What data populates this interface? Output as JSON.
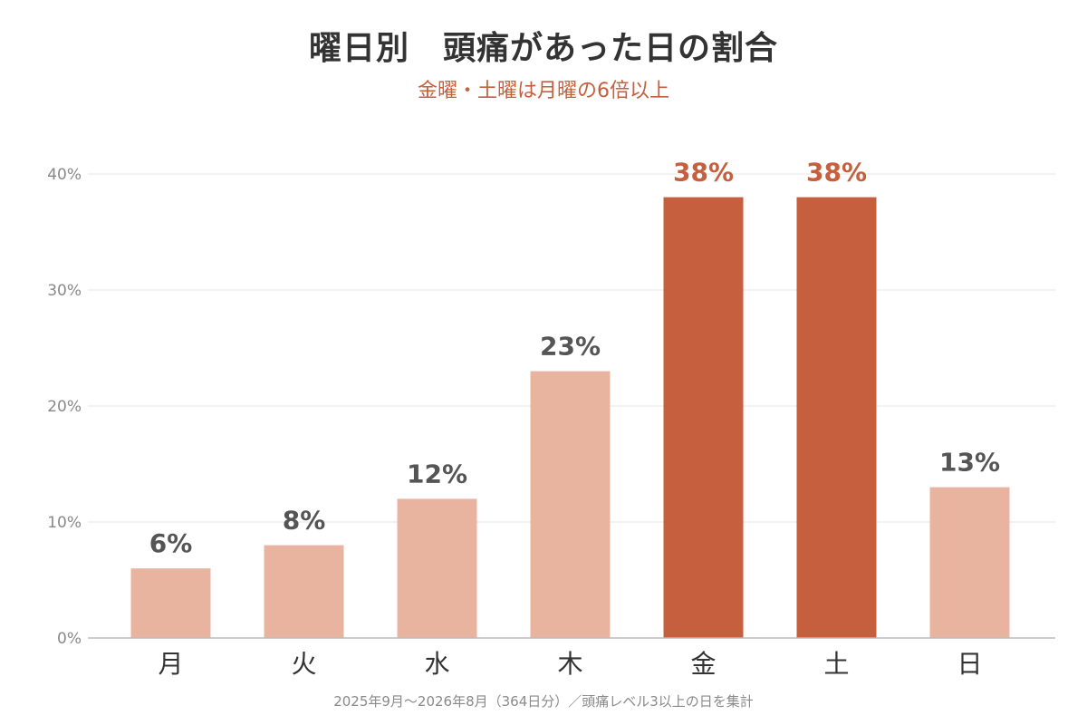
{
  "title": "曜日別　頭痛があった日の割合",
  "subtitle": "金曜・土曜は月曜の6倍以上",
  "footnote": "2025年9月〜2026年8月（364日分）／頭痛レベル3以上の日を集計",
  "colors": {
    "highlight": "#c55f3e",
    "normal": "#e8b4a0",
    "label_normal": "#555555",
    "grid": "#e6e6e6",
    "axis": "#bbbbbb",
    "tick": "#888888"
  },
  "chart_data": {
    "type": "bar",
    "categories": [
      "月",
      "火",
      "水",
      "木",
      "金",
      "土",
      "日"
    ],
    "values": [
      6,
      8,
      12,
      23,
      38,
      38,
      13
    ],
    "data_labels": [
      "6%",
      "8%",
      "12%",
      "23%",
      "38%",
      "38%",
      "13%"
    ],
    "highlighted": [
      "金",
      "土"
    ],
    "title": "曜日別　頭痛があった日の割合",
    "subtitle": "金曜・土曜は月曜の6倍以上",
    "ylim": [
      0,
      40
    ],
    "yticks": [
      0,
      10,
      20,
      30,
      40
    ],
    "ytick_labels": [
      "0%",
      "10%",
      "20%",
      "30%",
      "40%"
    ],
    "grid": true,
    "legend": "none"
  }
}
